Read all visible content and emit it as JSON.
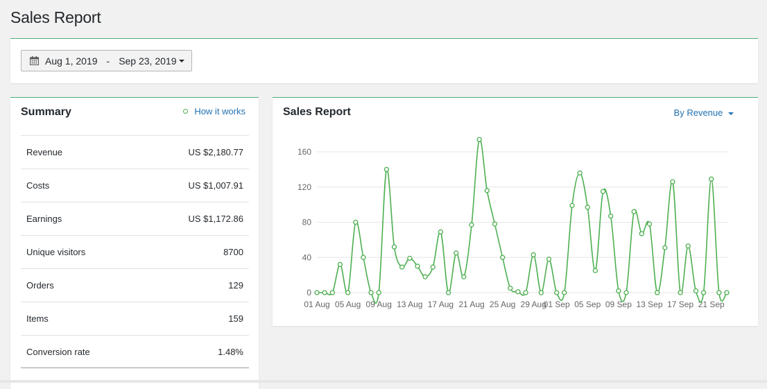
{
  "page": {
    "title": "Sales Report"
  },
  "date_range": {
    "start": "Aug 1, 2019",
    "separator": "-",
    "end": "Sep 23, 2019"
  },
  "summary": {
    "title": "Summary",
    "how_link": "How it works",
    "rows": [
      {
        "label": "Revenue",
        "value": "US $2,180.77"
      },
      {
        "label": "Costs",
        "value": "US $1,007.91"
      },
      {
        "label": "Earnings",
        "value": "US $1,172.86"
      },
      {
        "label": "Unique visitors",
        "value": "8700"
      },
      {
        "label": "Orders",
        "value": "129"
      },
      {
        "label": "Items",
        "value": "159"
      },
      {
        "label": "Conversion rate",
        "value": "1.48%"
      }
    ]
  },
  "chart_panel": {
    "title": "Sales Report",
    "metric_selector": "By Revenue"
  },
  "colors": {
    "accent": "#4caf7d",
    "line": "#4caf50",
    "link": "#2271b1"
  },
  "chart_data": {
    "type": "line",
    "title": "Sales Report",
    "xlabel": "",
    "ylabel": "",
    "ylim": [
      0,
      160
    ],
    "yticks": [
      0,
      40,
      80,
      120,
      160
    ],
    "grid": true,
    "xtick_labels": [
      "01 Aug",
      "05 Aug",
      "09 Aug",
      "13 Aug",
      "17 Aug",
      "21 Aug",
      "25 Aug",
      "29 Aug",
      "01 Sep",
      "05 Sep",
      "09 Sep",
      "13 Sep",
      "17 Sep",
      "21 Sep"
    ],
    "xtick_indices": [
      0,
      4,
      8,
      12,
      16,
      20,
      24,
      28,
      31,
      35,
      39,
      43,
      47,
      51
    ],
    "series": [
      {
        "values": [
          0,
          0,
          0,
          32,
          0,
          80,
          40,
          0,
          0,
          140,
          52,
          29,
          39,
          30,
          18,
          29,
          69,
          0,
          45,
          18,
          77,
          174,
          116,
          78,
          40,
          5,
          1,
          0,
          43,
          0,
          38,
          0,
          0,
          99,
          136,
          97,
          25,
          115,
          87,
          2,
          0,
          92,
          67,
          78,
          0,
          51,
          126,
          0,
          53,
          2,
          0,
          129,
          0,
          0
        ]
      }
    ]
  }
}
